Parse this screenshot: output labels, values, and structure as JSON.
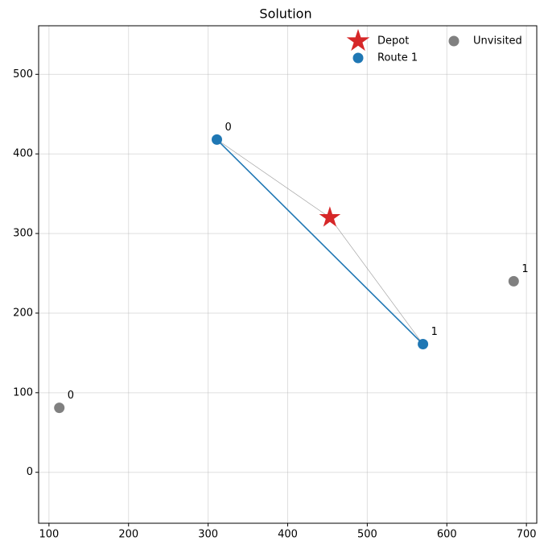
{
  "chart_data": {
    "type": "scatter",
    "title": "Solution",
    "xlim": [
      87,
      713
    ],
    "ylim": [
      -64,
      561
    ],
    "xticks": [
      100,
      200,
      300,
      400,
      500,
      600,
      700
    ],
    "yticks": [
      0,
      100,
      200,
      300,
      400,
      500
    ],
    "grid": true,
    "legend": "upper right",
    "series": [
      {
        "name": "Depot",
        "color": "#d62728",
        "marker": "star",
        "x": [
          453
        ],
        "y": [
          320
        ]
      },
      {
        "name": "Route 1",
        "color": "#1f77b4",
        "marker": "circle",
        "route": true,
        "x": [
          311,
          570
        ],
        "y": [
          418,
          161
        ],
        "labels": [
          "0",
          "1"
        ]
      },
      {
        "name": "Unvisited",
        "color": "#808080",
        "marker": "circle",
        "x": [
          113,
          684
        ],
        "y": [
          81,
          240
        ],
        "labels": [
          "0",
          "1"
        ]
      }
    ]
  }
}
